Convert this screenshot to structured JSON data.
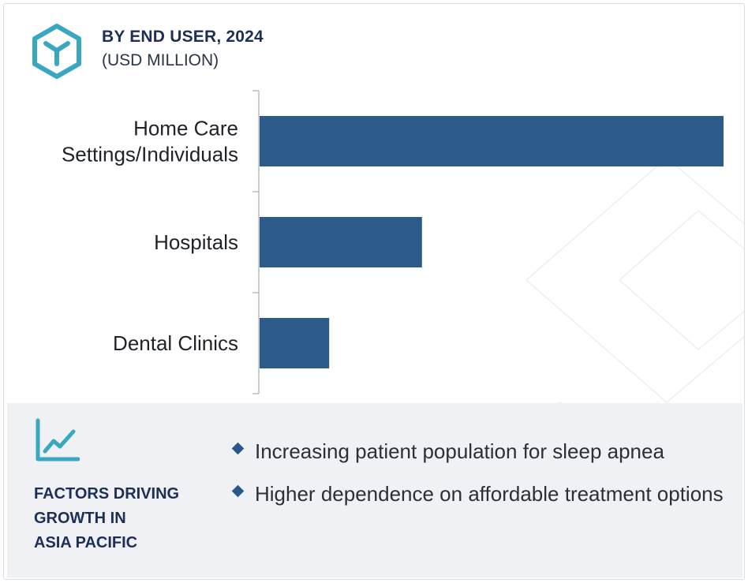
{
  "header": {
    "icon": "cube-icon",
    "title": "BY END USER, 2024",
    "subtitle": "(USD MILLION)"
  },
  "chart_data": {
    "type": "bar",
    "orientation": "horizontal",
    "categories": [
      [
        "Home Care",
        "Settings/Individuals"
      ],
      [
        "Hospitals"
      ],
      [
        "Dental Clinics"
      ]
    ],
    "values": [
      100,
      35,
      15
    ],
    "xlim": [
      0,
      100
    ],
    "bar_color": "#2c5a8a",
    "grid": false,
    "legend": "none"
  },
  "factors": {
    "icon": "trend-chart-icon",
    "title_lines": [
      "FACTORS DRIVING",
      "GROWTH IN",
      "ASIA PACIFIC"
    ],
    "items": [
      "Increasing patient population for sleep apnea",
      "Higher dependence on affordable treatment options"
    ]
  },
  "colors": {
    "accent": "#2c5a8a",
    "teal": "#3aa7c2",
    "heading": "#1d2f55",
    "panel": "#eff1f5"
  }
}
